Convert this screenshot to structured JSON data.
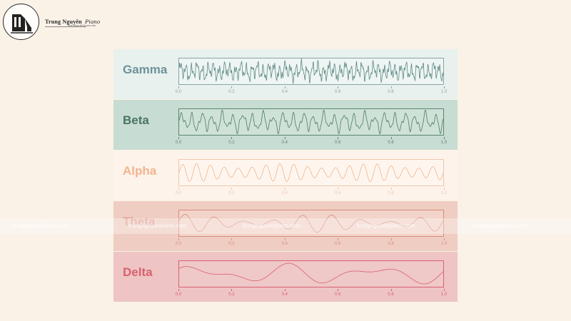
{
  "brand": {
    "name": "Trung Nguyên",
    "script": "Piano",
    "tagline": "Kinh phúc đủ lời mọi nhà"
  },
  "colors": {
    "page_bg": "#faf1e7",
    "gamma_bg": "#e8f1ee",
    "beta_bg": "#c7dcd2",
    "alpha_bg": "#fdf3ea",
    "theta_bg": "#efcdc2",
    "delta_bg": "#eec4c4"
  },
  "watermark": {
    "text": "trungnguyenpiano.com"
  },
  "chart_data": [
    {
      "type": "line",
      "title": "Gamma",
      "x_ticks": [
        "0.0",
        "0.2",
        "0.4",
        "0.6",
        "0.8",
        "1.0"
      ],
      "xlim": [
        0,
        1
      ],
      "color": "#5f8a86",
      "label_color": "#6f929a",
      "tick_color": "#8aa4a6",
      "box_bg": "#eef5f3",
      "wave": {
        "kind": "gamma",
        "cycles": 48,
        "amplitude": 0.4
      }
    },
    {
      "type": "line",
      "title": "Beta",
      "x_ticks": [
        "0.0",
        "0.2",
        "0.4",
        "0.6",
        "0.8",
        "1.0"
      ],
      "xlim": [
        0,
        1
      ],
      "color": "#4e7a66",
      "label_color": "#4b7463",
      "tick_color": "#5b8473",
      "box_bg": "#cfe2d8",
      "wave": {
        "kind": "beta",
        "cycles": 26,
        "amplitude": 0.45
      }
    },
    {
      "type": "line",
      "title": "Alpha",
      "x_ticks": [
        "0.0",
        "0.2",
        "0.4",
        "0.6",
        "0.8",
        "1.0"
      ],
      "xlim": [
        0,
        1
      ],
      "color": "#efb38f",
      "label_color": "#f1b48f",
      "tick_color": "#f0c6ac",
      "box_bg": "#fef6ee",
      "wave": {
        "kind": "alpha",
        "cycles": 19,
        "amplitude": 0.35
      }
    },
    {
      "type": "line",
      "title": "Theta",
      "x_ticks": [
        "0.0",
        "0.2",
        "0.4",
        "0.6",
        "0.8",
        "1.0"
      ],
      "xlim": [
        0,
        1
      ],
      "color": "#d98c7c",
      "label_color": "#e3a39a",
      "tick_color": "#d98c7c",
      "box_bg": "#f2d4ca",
      "wave": {
        "kind": "theta",
        "cycles": 9,
        "amplitude": 0.35
      }
    },
    {
      "type": "line",
      "title": "Delta",
      "x_ticks": [
        "0.0",
        "0.2",
        "0.4",
        "0.6",
        "0.8",
        "1.0"
      ],
      "xlim": [
        0,
        1
      ],
      "color": "#d9616f",
      "label_color": "#d9616f",
      "tick_color": "#d9616f",
      "box_bg": "#efc8c8",
      "wave": {
        "kind": "delta",
        "cycles": 3,
        "amplitude": 0.42
      }
    }
  ]
}
